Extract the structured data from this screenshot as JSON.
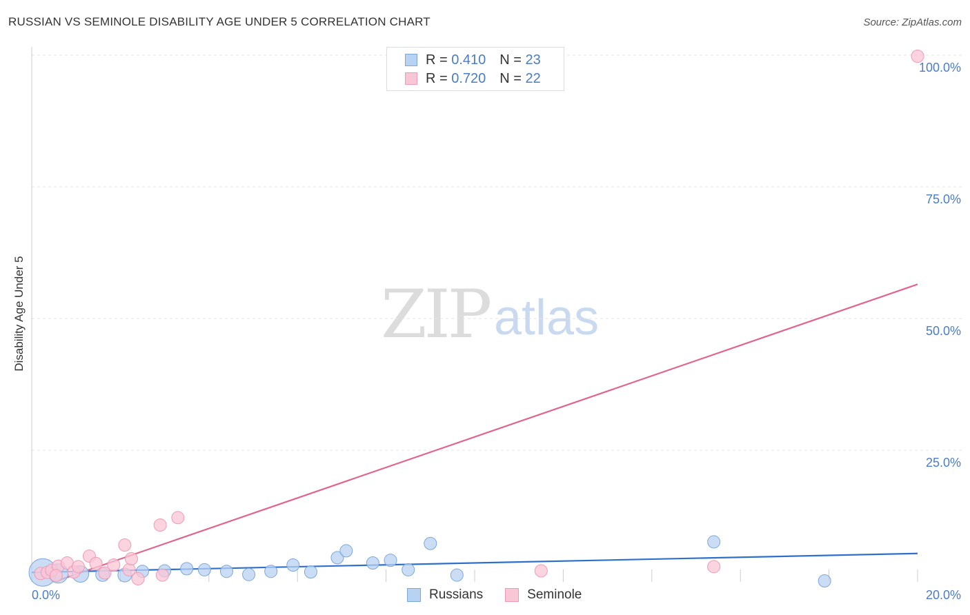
{
  "header": {
    "title": "RUSSIAN VS SEMINOLE DISABILITY AGE UNDER 5 CORRELATION CHART",
    "source": "Source: ZipAtlas.com"
  },
  "watermark": {
    "zip": "ZIP",
    "atlas": "atlas"
  },
  "legend": {
    "rows": [
      {
        "r_label": "R =",
        "r_value": "0.410",
        "n_label": "N =",
        "n_value": "23",
        "color": "#a8c8f0"
      },
      {
        "r_label": "R =",
        "r_value": "0.720",
        "n_label": "N =",
        "n_value": "22",
        "color": "#f8bcd0"
      }
    ]
  },
  "bottom_legend": {
    "russians": "Russians",
    "seminole": "Seminole"
  },
  "colors": {
    "russians_fill": "#b8d2f2",
    "russians_stroke": "#7aa6dc",
    "russians_line": "#2e6fcc",
    "seminole_fill": "#f9c6d6",
    "seminole_stroke": "#ee9ab6",
    "seminole_line": "#e0648e"
  },
  "chart_data": {
    "type": "scatter",
    "title": "RUSSIAN VS SEMINOLE DISABILITY AGE UNDER 5 CORRELATION CHART",
    "xlabel": "",
    "ylabel": "Disability Age Under 5",
    "xlim": [
      0,
      20
    ],
    "ylim": [
      0,
      100
    ],
    "x_tick_labels": [
      "0.0%",
      "20.0%"
    ],
    "y_ticks": [
      25,
      50,
      75,
      100
    ],
    "y_tick_labels": [
      "25.0%",
      "50.0%",
      "75.0%",
      "100.0%"
    ],
    "grid": true,
    "legend_position": "top-center",
    "series": [
      {
        "name": "Russians",
        "points": [
          [
            0.25,
            1.8,
            20
          ],
          [
            0.6,
            1.6,
            14
          ],
          [
            1.1,
            1.5,
            12
          ],
          [
            1.6,
            1.4,
            10
          ],
          [
            2.1,
            1.3,
            10
          ],
          [
            2.5,
            2.0,
            9
          ],
          [
            3.0,
            2.1,
            9
          ],
          [
            3.5,
            2.5,
            9
          ],
          [
            3.9,
            2.3,
            9
          ],
          [
            4.4,
            2.0,
            9
          ],
          [
            4.9,
            1.4,
            9
          ],
          [
            5.4,
            2.0,
            9
          ],
          [
            5.9,
            3.2,
            9
          ],
          [
            6.3,
            1.9,
            9
          ],
          [
            6.9,
            4.6,
            9
          ],
          [
            7.1,
            5.9,
            9
          ],
          [
            7.7,
            3.6,
            9
          ],
          [
            8.1,
            4.1,
            9
          ],
          [
            8.5,
            2.3,
            9
          ],
          [
            9.0,
            7.3,
            9
          ],
          [
            9.6,
            1.3,
            9
          ],
          [
            15.4,
            7.6,
            9
          ],
          [
            17.9,
            0.2,
            9
          ]
        ],
        "trendline": {
          "x": [
            0,
            20
          ],
          "y": [
            1.8,
            5.4
          ]
        }
      },
      {
        "name": "Seminole",
        "points": [
          [
            0.2,
            1.6,
            9
          ],
          [
            0.35,
            1.8,
            9
          ],
          [
            0.45,
            2.2,
            9
          ],
          [
            0.6,
            3.0,
            9
          ],
          [
            0.8,
            3.6,
            9
          ],
          [
            0.95,
            1.9,
            9
          ],
          [
            1.05,
            2.9,
            9
          ],
          [
            1.3,
            4.9,
            9
          ],
          [
            1.45,
            3.5,
            9
          ],
          [
            1.65,
            1.7,
            9
          ],
          [
            1.85,
            3.2,
            9
          ],
          [
            2.2,
            2.3,
            9
          ],
          [
            2.4,
            0.6,
            9
          ],
          [
            2.9,
            10.8,
            9
          ],
          [
            2.95,
            1.3,
            9
          ],
          [
            3.3,
            12.2,
            9
          ],
          [
            2.1,
            7.0,
            9
          ],
          [
            2.25,
            4.4,
            9
          ],
          [
            0.55,
            1.2,
            9
          ],
          [
            11.5,
            2.1,
            9
          ],
          [
            15.4,
            2.9,
            9
          ],
          [
            20.0,
            99.8,
            9
          ]
        ],
        "trendline": {
          "x": [
            0.5,
            20
          ],
          "y": [
            0,
            56.5
          ]
        }
      }
    ]
  }
}
